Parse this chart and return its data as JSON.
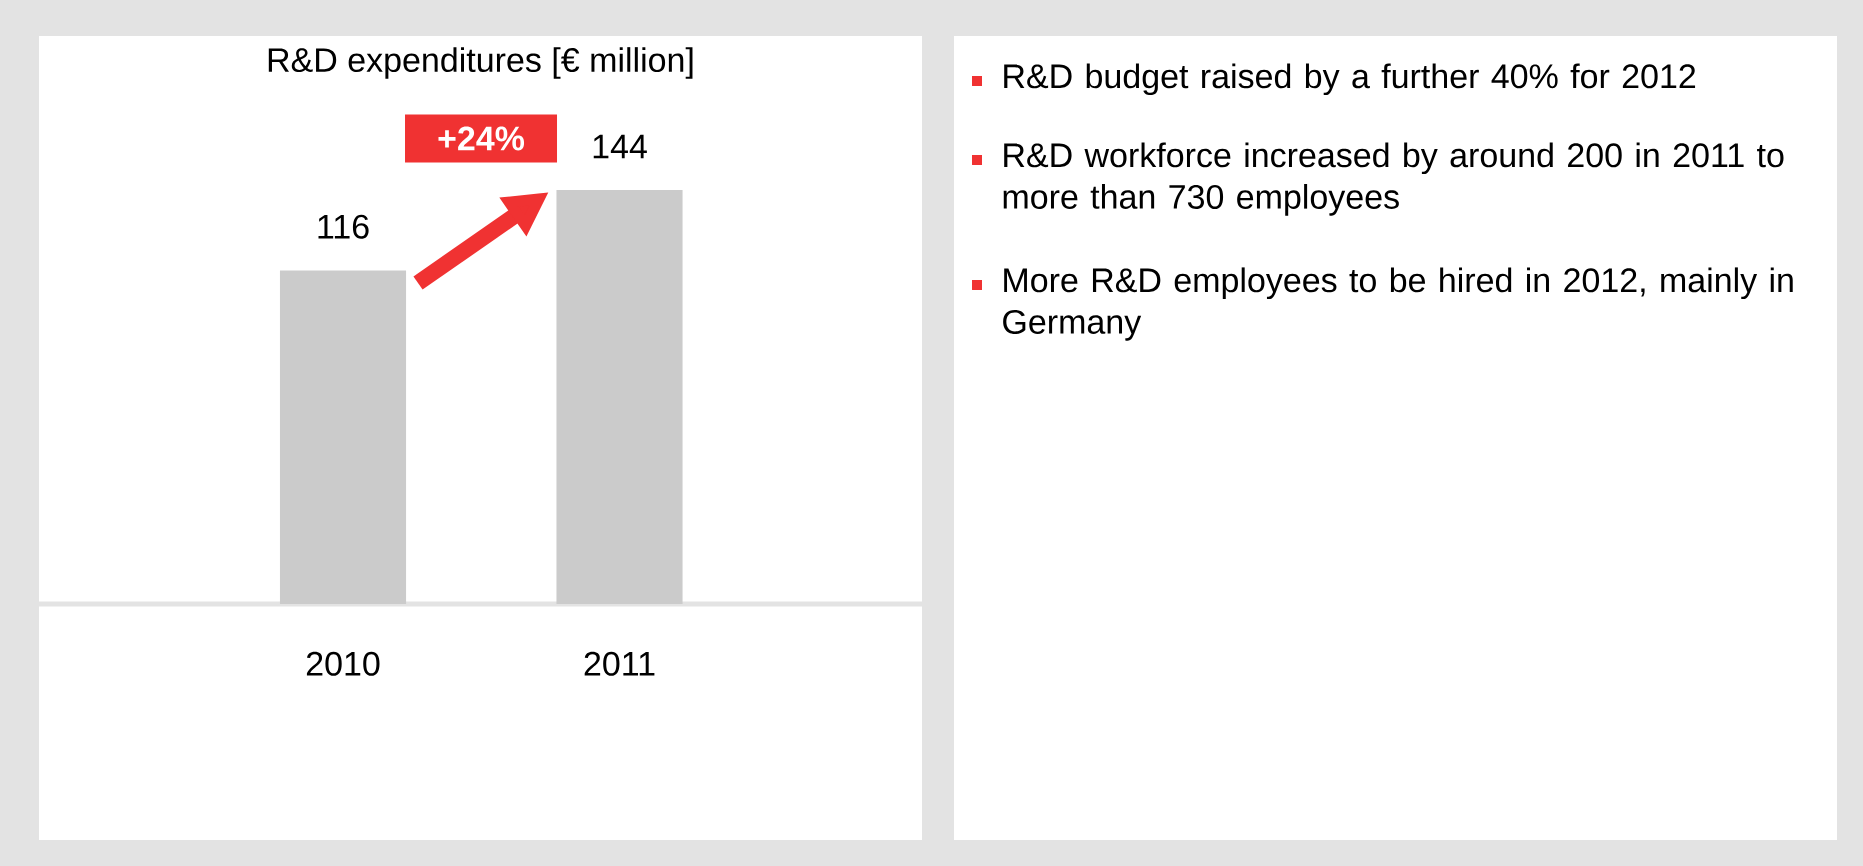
{
  "chart_data": [
    {
      "type": "bar",
      "title": "R&D expenditures [€ million]",
      "categories": [
        "2010",
        "2011"
      ],
      "values": [
        116,
        144
      ],
      "color": "#cbcbcb",
      "data_labels": true,
      "annotations": [
        "+24%"
      ]
    },
    {
      "type": "other",
      "annotations": [
        "R&D budget raised by a further 40% for 2012",
        "R&D workforce increased by around 200 in 2011 to more than 730 employees",
        "More R&D employees to be hired in 2012, mainly in Germany"
      ]
    }
  ]
}
